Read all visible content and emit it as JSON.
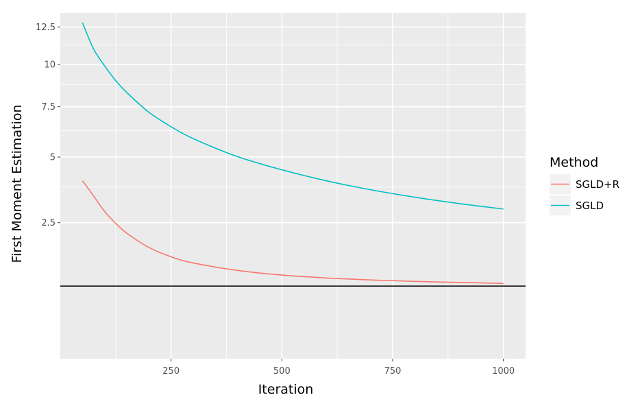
{
  "chart_data": {
    "type": "line",
    "title": "",
    "xlabel": "Iteration",
    "ylabel": "First Moment Estimation",
    "xlim": [
      0,
      1050
    ],
    "ylim": [
      0.05,
      13.5
    ],
    "y_scale": "sqrt",
    "x_ticks": [
      250,
      500,
      750,
      1000
    ],
    "x_tick_labels": [
      "250",
      "500",
      "750",
      "1000"
    ],
    "y_ticks": [
      2.5,
      5,
      7.5,
      10,
      12.5
    ],
    "y_tick_labels": [
      "2.5",
      "5",
      "7.5",
      "10",
      "12.5"
    ],
    "grid": true,
    "legend": {
      "title": "Method",
      "position": "right"
    },
    "reference_line": {
      "y": 0.9,
      "color": "#000000"
    },
    "series": [
      {
        "name": "SGLD+R",
        "color": "#F8766D",
        "x": [
          50,
          75,
          100,
          125,
          150,
          200,
          250,
          300,
          400,
          500,
          600,
          700,
          800,
          900,
          1000
        ],
        "values": [
          4.0,
          3.42,
          2.87,
          2.48,
          2.18,
          1.78,
          1.54,
          1.39,
          1.22,
          1.12,
          1.06,
          1.02,
          0.99,
          0.97,
          0.95
        ]
      },
      {
        "name": "SGLD",
        "color": "#00BFC4",
        "x": [
          50,
          75,
          100,
          125,
          150,
          200,
          250,
          300,
          400,
          500,
          600,
          700,
          800,
          900,
          1000
        ],
        "values": [
          12.8,
          11.0,
          9.9,
          9.0,
          8.3,
          7.2,
          6.45,
          5.86,
          5.02,
          4.45,
          4.0,
          3.65,
          3.37,
          3.14,
          2.95
        ]
      }
    ]
  }
}
